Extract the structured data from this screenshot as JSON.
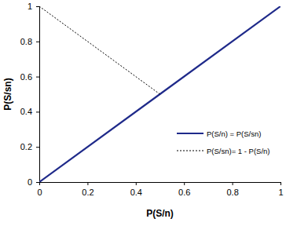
{
  "chart_data": {
    "type": "line",
    "x_label": "P(S/n)",
    "y_label": "P(S/sn)",
    "x": [
      0,
      0.5,
      1
    ],
    "series": [
      {
        "name": "P(S/n) = P(S/sn)",
        "color": "#1f2a8a",
        "line_style": "solid",
        "values": [
          0,
          0.5,
          1
        ]
      },
      {
        "name": "P(S/sn)= 1 - P(S/n)",
        "color": "#000000",
        "line_style": "dotted",
        "values": [
          1,
          0.5,
          null
        ]
      }
    ],
    "xlim": [
      0,
      1
    ],
    "xticks": [
      0,
      0.2,
      0.4,
      0.6,
      0.8,
      1
    ],
    "ylim": [
      0,
      1
    ],
    "yticks": [
      0,
      0.2,
      0.4,
      0.6,
      0.8,
      1
    ],
    "grid": false,
    "legend": "lower right"
  }
}
